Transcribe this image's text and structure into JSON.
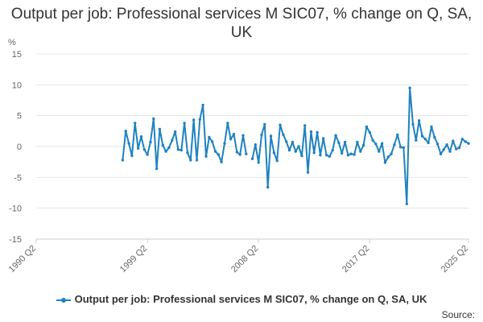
{
  "chart_data": {
    "type": "line",
    "title": "Output per job: Professional services M SIC07, % change on Q, SA, UK",
    "ylabel": "%",
    "ylim": [
      -15,
      15
    ],
    "yticks": [
      15,
      10,
      5,
      0,
      -5,
      -10,
      -15
    ],
    "xlim": [
      1990.25,
      2025.25
    ],
    "xticks": [
      {
        "label": "1990 Q2",
        "value": 1990.25
      },
      {
        "label": "1999 Q2",
        "value": 1999.25
      },
      {
        "label": "2008 Q2",
        "value": 2008.25
      },
      {
        "label": "2017 Q2",
        "value": 2017.25
      },
      {
        "label": "2025 Q2",
        "value": 2025.25
      }
    ],
    "grid": true,
    "legend_position": "bottom",
    "series": [
      {
        "name": "Output per job: Professional services M SIC07, % change on Q, SA, UK",
        "color": "#1f82c0",
        "start": "1997 Q2",
        "values": [
          -2.2,
          2.5,
          0.5,
          -1.5,
          3.8,
          -0.3,
          1.6,
          -0.5,
          -1.3,
          0.7,
          4.5,
          -3.6,
          2.8,
          0.2,
          -0.8,
          -0.2,
          1.0,
          2.4,
          -0.5,
          -0.6,
          3.8,
          -1.0,
          -2.2,
          4.3,
          -2.2,
          4.4,
          6.7,
          -1.6,
          1.5,
          0.8,
          -0.8,
          -1.3,
          -2.5,
          0.5,
          3.8,
          1.2,
          2.0,
          -0.9,
          -1.3,
          1.8,
          -1.2,
          null,
          -2.0,
          0.3,
          -2.6,
          1.9,
          3.6,
          -6.6,
          1.7,
          -1.0,
          -2.3,
          3.5,
          1.9,
          0.8,
          -0.6,
          0.7,
          -0.8,
          0.0,
          -1.5,
          3.4,
          -4.2,
          2.4,
          -1.0,
          2.3,
          -1.4,
          1.3,
          -1.4,
          -1.6,
          -0.6,
          1.8,
          0.6,
          -1.1,
          0.7,
          -1.4,
          -1.2,
          -1.3,
          0.7,
          -0.8,
          0.2,
          3.2,
          2.3,
          1.0,
          0.4,
          -0.8,
          0.5,
          -2.6,
          -1.7,
          -1.2,
          0.3,
          1.9,
          -0.1,
          -0.2,
          -9.3,
          9.5,
          3.6,
          1.0,
          4.2,
          1.7,
          1.2,
          0.6,
          3.2,
          1.5,
          0.4,
          -1.2,
          -0.5,
          0.3,
          -0.8,
          0.9,
          -0.4,
          -0.2,
          1.2,
          0.8,
          0.5
        ]
      }
    ]
  },
  "legend": {
    "label": "Output per job: Professional services M SIC07, % change on Q, SA, UK"
  },
  "footer": {
    "source": "Source:"
  }
}
